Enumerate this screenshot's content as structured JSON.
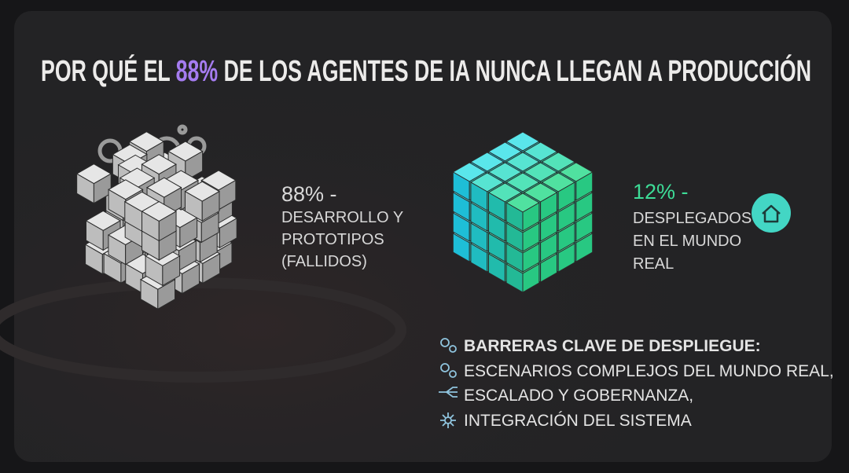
{
  "title": {
    "before": "POR QUÉ EL",
    "highlight": "88%",
    "after": "DE LOS AGENTES DE IA NUNCA LLEGAN A PRODUCCIÓN"
  },
  "failed": {
    "stat": "88% -",
    "lines": [
      "DESARROLLO Y",
      "PROTOTIPOS",
      "(FALLIDOS)"
    ]
  },
  "deployed": {
    "stat": "12% -",
    "lines": [
      "DESPLEGADOS",
      "EN EL MUNDO",
      "REAL"
    ]
  },
  "barriers": {
    "heading": "BARRERAS CLAVE DE DESPLIEGUE:",
    "items": [
      "ESCENARIOS COMPLEJOS DEL MUNDO REAL,",
      "ESCALADO Y GOBERNANZA,",
      "INTEGRACIÓN DEL SISTEMA"
    ]
  }
}
